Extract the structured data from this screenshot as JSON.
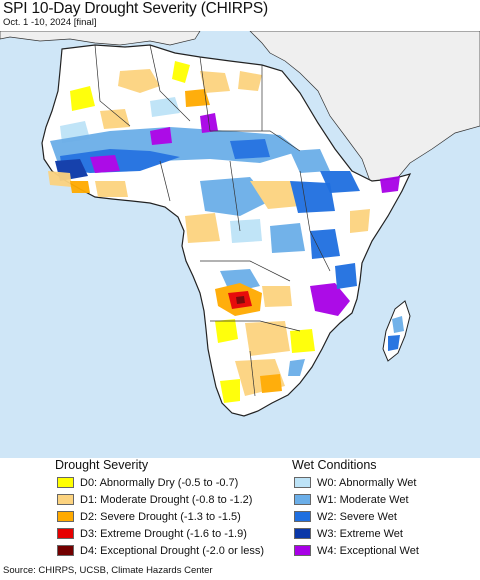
{
  "header": {
    "title": "SPI 10-Day Drought Severity (CHIRPS)",
    "subtitle": "Oct. 1 -10, 2024 [final]"
  },
  "legend": {
    "drought": {
      "heading": "Drought Severity",
      "items": [
        {
          "label": "D0: Abnormally Dry (-0.5 to -0.7)",
          "color": "#ffff00"
        },
        {
          "label": "D1: Moderate Drought (-0.8 to -1.2)",
          "color": "#fcd37f"
        },
        {
          "label": "D2: Severe Drought (-1.3 to -1.5)",
          "color": "#ffaa00"
        },
        {
          "label": "D3: Extreme Drought (-1.6 to -1.9)",
          "color": "#e60000"
        },
        {
          "label": "D4: Exceptional Drought (-2.0 or less)",
          "color": "#730000"
        }
      ]
    },
    "wet": {
      "heading": "Wet Conditions",
      "items": [
        {
          "label": "W0: Abnormally Wet",
          "color": "#bde3f7"
        },
        {
          "label": "W1: Moderate Wet",
          "color": "#6baee8"
        },
        {
          "label": "W2: Severe Wet",
          "color": "#1f6fe0"
        },
        {
          "label": "W3: Extreme Wet",
          "color": "#0a37a8"
        },
        {
          "label": "W4: Exceptional Wet",
          "color": "#a800e6"
        }
      ]
    }
  },
  "map": {
    "ocean_color": "#cfe6f7",
    "land_color": "#ffffff",
    "outside_region_color": "#f0f0f0"
  },
  "footer": {
    "source": "Source: CHIRPS, UCSB, Climate Hazards Center"
  }
}
